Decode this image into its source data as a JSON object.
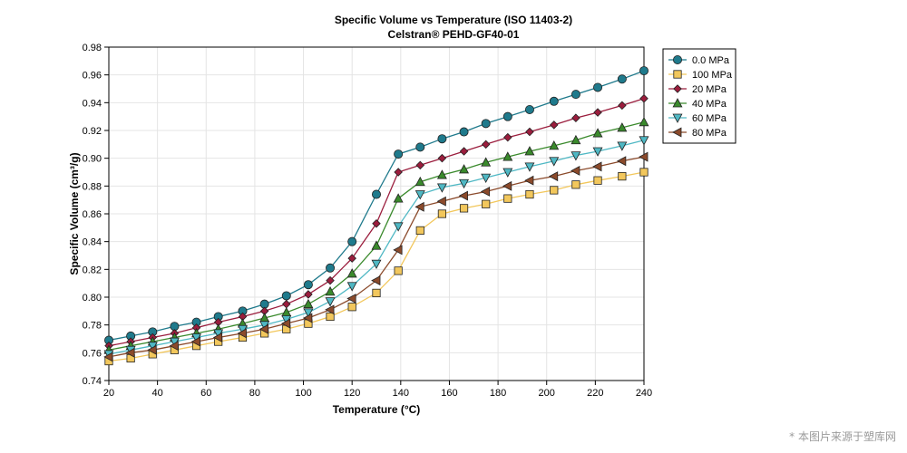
{
  "chart_data": {
    "type": "line",
    "title": "Specific Volume vs Temperature (ISO 11403-2)",
    "subtitle": "Celstran® PEHD-GF40-01",
    "xlabel": "Temperature (°C)",
    "ylabel": "Specific Volume (cm³/g)",
    "xlim": [
      20,
      240
    ],
    "ylim": [
      0.74,
      0.98
    ],
    "xticks": [
      20,
      40,
      60,
      80,
      100,
      120,
      140,
      160,
      180,
      200,
      220,
      240
    ],
    "yticks": [
      0.74,
      0.76,
      0.78,
      0.8,
      0.82,
      0.84,
      0.86,
      0.88,
      0.9,
      0.92,
      0.94,
      0.96,
      0.98
    ],
    "ytick_labels": [
      "0.74",
      "0.76",
      "0.78",
      "0.80",
      "0.82",
      "0.84",
      "0.86",
      "0.88",
      "0.90",
      "0.92",
      "0.94",
      "0.96",
      "0.98"
    ],
    "grid": true,
    "legend_position": "top-right outside",
    "series": [
      {
        "name": "0.0 MPa",
        "color": "#1f7a8c",
        "marker": "circle",
        "x": [
          20,
          29,
          38,
          47,
          56,
          65,
          75,
          84,
          93,
          102,
          111,
          120,
          130,
          139,
          148,
          157,
          166,
          175,
          184,
          193,
          203,
          212,
          221,
          231,
          240
        ],
        "y": [
          0.769,
          0.772,
          0.775,
          0.779,
          0.782,
          0.786,
          0.79,
          0.795,
          0.801,
          0.809,
          0.821,
          0.84,
          0.874,
          0.903,
          0.908,
          0.914,
          0.919,
          0.925,
          0.93,
          0.935,
          0.941,
          0.946,
          0.951,
          0.957,
          0.963
        ]
      },
      {
        "name": "100 MPa",
        "color": "#f2c75c",
        "marker": "square",
        "x": [
          20,
          29,
          38,
          47,
          56,
          65,
          75,
          84,
          93,
          102,
          111,
          120,
          130,
          139,
          148,
          157,
          166,
          175,
          184,
          193,
          203,
          212,
          221,
          231,
          240
        ],
        "y": [
          0.754,
          0.756,
          0.759,
          0.762,
          0.765,
          0.768,
          0.771,
          0.774,
          0.777,
          0.781,
          0.786,
          0.793,
          0.803,
          0.819,
          0.848,
          0.86,
          0.864,
          0.867,
          0.871,
          0.874,
          0.877,
          0.881,
          0.884,
          0.887,
          0.89
        ]
      },
      {
        "name": "20 MPa",
        "color": "#9b1d3d",
        "marker": "diamond",
        "x": [
          20,
          29,
          38,
          47,
          56,
          65,
          75,
          84,
          93,
          102,
          111,
          120,
          130,
          139,
          148,
          157,
          166,
          175,
          184,
          193,
          203,
          212,
          221,
          231,
          240
        ],
        "y": [
          0.765,
          0.768,
          0.771,
          0.774,
          0.778,
          0.782,
          0.786,
          0.79,
          0.795,
          0.802,
          0.812,
          0.828,
          0.853,
          0.89,
          0.895,
          0.9,
          0.905,
          0.91,
          0.915,
          0.919,
          0.924,
          0.929,
          0.933,
          0.938,
          0.943
        ]
      },
      {
        "name": "40 MPa",
        "color": "#3a8a2c",
        "marker": "triangle-up",
        "x": [
          20,
          29,
          38,
          47,
          56,
          65,
          75,
          84,
          93,
          102,
          111,
          120,
          130,
          139,
          148,
          157,
          166,
          175,
          184,
          193,
          203,
          212,
          221,
          231,
          240
        ],
        "y": [
          0.762,
          0.765,
          0.768,
          0.771,
          0.774,
          0.777,
          0.781,
          0.785,
          0.789,
          0.795,
          0.804,
          0.817,
          0.837,
          0.871,
          0.883,
          0.888,
          0.892,
          0.897,
          0.901,
          0.905,
          0.909,
          0.913,
          0.918,
          0.922,
          0.926
        ]
      },
      {
        "name": "60 MPa",
        "color": "#4fb8c4",
        "marker": "triangle-down",
        "x": [
          20,
          29,
          38,
          47,
          56,
          65,
          75,
          84,
          93,
          102,
          111,
          120,
          130,
          139,
          148,
          157,
          166,
          175,
          184,
          193,
          203,
          212,
          221,
          231,
          240
        ],
        "y": [
          0.759,
          0.762,
          0.765,
          0.768,
          0.771,
          0.774,
          0.777,
          0.78,
          0.784,
          0.789,
          0.797,
          0.808,
          0.824,
          0.851,
          0.874,
          0.879,
          0.882,
          0.886,
          0.89,
          0.894,
          0.898,
          0.902,
          0.905,
          0.909,
          0.913
        ]
      },
      {
        "name": "80 MPa",
        "color": "#8b4a2b",
        "marker": "triangle-left",
        "x": [
          20,
          29,
          38,
          47,
          56,
          65,
          75,
          84,
          93,
          102,
          111,
          120,
          130,
          139,
          148,
          157,
          166,
          175,
          184,
          193,
          203,
          212,
          221,
          231,
          240
        ],
        "y": [
          0.757,
          0.76,
          0.762,
          0.765,
          0.768,
          0.771,
          0.774,
          0.777,
          0.781,
          0.785,
          0.791,
          0.799,
          0.812,
          0.834,
          0.865,
          0.869,
          0.873,
          0.876,
          0.88,
          0.884,
          0.887,
          0.891,
          0.894,
          0.898,
          0.901
        ]
      }
    ]
  },
  "watermark": "* 本图片来源于塑库网"
}
